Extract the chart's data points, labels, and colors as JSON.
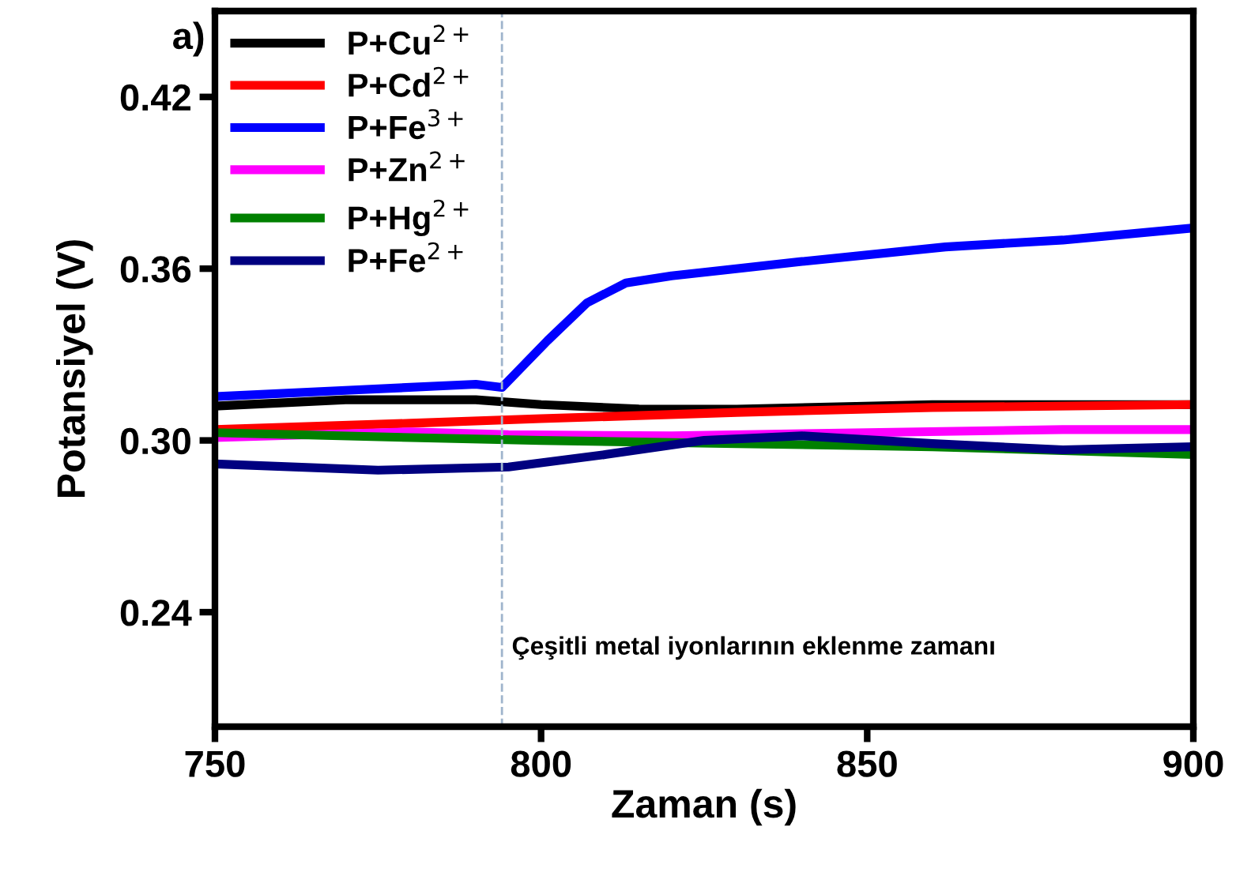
{
  "chart_data": {
    "type": "line",
    "xlabel": "Zaman (s)",
    "ylabel": "Potansiyel (V)",
    "annotations": [
      "a)"
    ],
    "xlim": [
      750,
      900
    ],
    "xticks": [
      750,
      800,
      850,
      900
    ],
    "ylim": [
      0.2,
      0.45
    ],
    "yticks": [
      {
        "value": 0.24,
        "label": "0.24"
      },
      {
        "value": 0.3,
        "label": "0.30"
      },
      {
        "value": 0.36,
        "label": "0.36"
      },
      {
        "value": 0.42,
        "label": "0.42"
      }
    ],
    "grid": false,
    "legend": "top left",
    "marker": "none",
    "line_style": "solid",
    "ref_lines": [
      {
        "axis": "x",
        "value": 794,
        "label": "Çeşitli metal iyonlarının eklenme zamanı",
        "color": "#9fb4cc",
        "line_style": "dashed"
      }
    ],
    "series": [
      {
        "name": "P+Cu$^{2+}$",
        "color": "#000000",
        "x": [
          750,
          770,
          790,
          800,
          815,
          830,
          860,
          900
        ],
        "values": [
          0.312,
          0.3142,
          0.3142,
          0.3125,
          0.311,
          0.3109,
          0.3125,
          0.3125
        ]
      },
      {
        "name": "P+Cd$^{2+}$",
        "color": "#ff0000",
        "x": [
          750,
          780,
          800,
          830,
          860,
          900
        ],
        "values": [
          0.3038,
          0.306,
          0.3076,
          0.3098,
          0.3115,
          0.3125
        ]
      },
      {
        "name": "P+Fe$^{3+}$",
        "color": "#0000ff",
        "x": [
          750,
          770,
          790,
          794,
          801,
          807,
          813,
          820,
          828,
          840,
          862,
          880,
          900
        ],
        "values": [
          0.3153,
          0.3175,
          0.3196,
          0.3185,
          0.3349,
          0.348,
          0.355,
          0.3575,
          0.3595,
          0.3625,
          0.3676,
          0.37,
          0.3742
        ]
      },
      {
        "name": "P+Zn$^{2+}$",
        "color": "#ff00ff",
        "x": [
          750,
          780,
          795,
          820,
          850,
          880,
          900
        ],
        "values": [
          0.301,
          0.303,
          0.302,
          0.3016,
          0.3027,
          0.3038,
          0.3038
        ]
      },
      {
        "name": "P+Hg$^{2+}$",
        "color": "#008000",
        "x": [
          750,
          780,
          800,
          830,
          860,
          900
        ],
        "values": [
          0.3027,
          0.301,
          0.3,
          0.2989,
          0.2978,
          0.2951
        ]
      },
      {
        "name": "P+Fe$^{2+}$",
        "color": "#000080",
        "x": [
          750,
          775,
          795,
          810,
          825,
          840,
          860,
          880,
          900
        ],
        "values": [
          0.2918,
          0.2896,
          0.2907,
          0.2951,
          0.3,
          0.3016,
          0.2989,
          0.2967,
          0.2978
        ]
      }
    ]
  }
}
